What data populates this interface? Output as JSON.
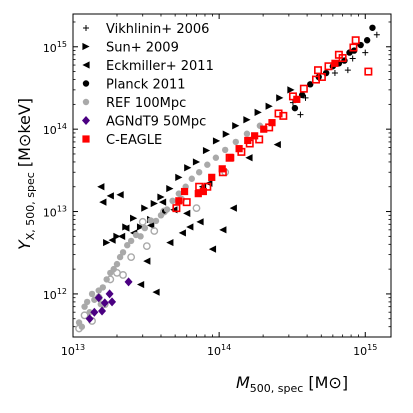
{
  "chart_data": {
    "type": "scatter",
    "title": "",
    "xlabel": "M_{500, spec} [M⊙]",
    "ylabel": "Y_{X, 500, spec} [M⊙keV]",
    "xlabel_main": "M",
    "xlabel_sub": "500, spec",
    "xlabel_unit": " [M⊙]",
    "ylabel_main": "Y",
    "ylabel_sub": "X, 500, spec",
    "ylabel_unit": " [M⊙keV]",
    "xscale": "log",
    "yscale": "log",
    "xlim": [
      10000000000000.0,
      1500000000000000.0
    ],
    "ylim": [
      300000000000.0,
      2500000000000000.0
    ],
    "xticks": [
      {
        "value": 10000000000000.0,
        "mant": "10",
        "exp": "13"
      },
      {
        "value": 100000000000000.0,
        "mant": "10",
        "exp": "14"
      },
      {
        "value": 1000000000000000.0,
        "mant": "10",
        "exp": "15"
      }
    ],
    "yticks": [
      {
        "value": 1000000000000.0,
        "mant": "10",
        "exp": "12"
      },
      {
        "value": 10000000000000.0,
        "mant": "10",
        "exp": "13"
      },
      {
        "value": 100000000000000.0,
        "mant": "10",
        "exp": "14"
      },
      {
        "value": 1000000000000000.0,
        "mant": "10",
        "exp": "15"
      }
    ],
    "legend_position": "top-left",
    "series": [
      {
        "name": "Vikhlinin+ 2006",
        "marker": "plus",
        "color": "#000000",
        "x": [
          320000000000000.0,
          360000000000000.0,
          390000000000000.0,
          620000000000000.0,
          760000000000000.0,
          820000000000000.0,
          1000000000000000.0,
          1200000000000000.0
        ],
        "y": [
          210000000000000.0,
          150000000000000.0,
          240000000000000.0,
          480000000000000.0,
          520000000000000.0,
          720000000000000.0,
          850000000000000.0,
          1400000000000000.0
        ]
      },
      {
        "name": "Sun+ 2009",
        "marker": "triangle-right",
        "color": "#000000",
        "x": [
          17000000000000.0,
          20000000000000.0,
          23000000000000.0,
          26000000000000.0,
          31000000000000.0,
          36000000000000.0,
          40000000000000.0,
          46000000000000.0,
          53000000000000.0,
          61000000000000.0,
          70000000000000.0,
          82000000000000.0,
          96000000000000.0,
          112000000000000.0,
          130000000000000.0,
          155000000000000.0,
          185000000000000.0,
          220000000000000.0,
          260000000000000.0,
          310000000000000.0,
          29000000000000.0,
          34000000000000.0,
          43000000000000.0
        ],
        "y": [
          4200000000000.0,
          5000000000000.0,
          6500000000000.0,
          8300000000000.0,
          11000000000000.0,
          12500000000000.0,
          15000000000000.0,
          19000000000000.0,
          26000000000000.0,
          34000000000000.0,
          40000000000000.0,
          55000000000000.0,
          72000000000000.0,
          87000000000000.0,
          110000000000000.0,
          130000000000000.0,
          160000000000000.0,
          190000000000000.0,
          240000000000000.0,
          300000000000000.0,
          6500000000000.0,
          8000000000000.0,
          10000000000000.0
        ]
      },
      {
        "name": "Eckmiller+ 2011",
        "marker": "triangle-left",
        "color": "#000000",
        "x": [
          15500000000000.0,
          18000000000000.0,
          21000000000000.0,
          23000000000000.0,
          29000000000000.0,
          32000000000000.0,
          37000000000000.0,
          41000000000000.0,
          49000000000000.0,
          56000000000000.0,
          63000000000000.0,
          74000000000000.0,
          90000000000000.0,
          106000000000000.0,
          125000000000000.0,
          160000000000000.0,
          250000000000000.0,
          18500000000000.0,
          26000000000000.0,
          34000000000000.0,
          46000000000000.0,
          60000000000000.0,
          77000000000000.0,
          85000000000000.0,
          16000000000000.0,
          21500000000000.0
        ],
        "y": [
          20000000000000.0,
          15500000000000.0,
          16000000000000.0,
          6300000000000.0,
          1300000000000.0,
          2500000000000.0,
          1050000000000.0,
          13000000000000.0,
          10500000000000.0,
          5500000000000.0,
          6500000000000.0,
          7500000000000.0,
          3500000000000.0,
          6000000000000.0,
          11000000000000.0,
          45000000000000.0,
          65000000000000.0,
          4500000000000.0,
          5500000000000.0,
          6800000000000.0,
          4200000000000.0,
          9500000000000.0,
          20000000000000.0,
          22000000000000.0,
          13000000000000.0,
          5000000000000.0
        ]
      },
      {
        "name": "Planck 2011",
        "marker": "circle",
        "color": "#000000",
        "x": [
          330000000000000.0,
          370000000000000.0,
          420000000000000.0,
          480000000000000.0,
          540000000000000.0,
          600000000000000.0,
          660000000000000.0,
          720000000000000.0,
          780000000000000.0,
          840000000000000.0,
          930000000000000.0,
          1030000000000000.0,
          1120000000000000.0
        ],
        "y": [
          180000000000000.0,
          260000000000000.0,
          350000000000000.0,
          430000000000000.0,
          480000000000000.0,
          580000000000000.0,
          630000000000000.0,
          680000000000000.0,
          850000000000000.0,
          900000000000000.0,
          1050000000000000.0,
          1200000000000000.0,
          1700000000000000.0
        ]
      },
      {
        "name": "REF 100Mpc",
        "marker": "circle",
        "color": "#a9a9a9",
        "x": [
          11000000000000.0,
          11500000000000.0,
          12000000000000.0,
          12500000000000.0,
          13000000000000.0,
          13500000000000.0,
          14000000000000.0,
          15000000000000.0,
          15500000000000.0,
          16000000000000.0,
          17000000000000.0,
          18000000000000.0,
          19000000000000.0,
          20000000000000.0,
          21000000000000.0,
          22000000000000.0,
          23500000000000.0,
          25000000000000.0,
          27000000000000.0,
          29000000000000.0,
          31000000000000.0,
          34000000000000.0,
          37000000000000.0,
          40000000000000.0,
          44000000000000.0,
          48000000000000.0,
          53000000000000.0,
          59000000000000.0,
          65000000000000.0,
          73000000000000.0,
          83000000000000.0,
          95000000000000.0,
          110000000000000.0,
          130000000000000.0,
          155000000000000.0,
          190000000000000.0
        ],
        "y": [
          450000000000.0,
          400000000000.0,
          700000000000.0,
          800000000000.0,
          600000000000.0,
          1000000000000.0,
          850000000000.0,
          1100000000000.0,
          750000000000.0,
          1200000000000.0,
          1500000000000.0,
          1800000000000.0,
          2000000000000.0,
          2300000000000.0,
          2800000000000.0,
          3200000000000.0,
          3900000000000.0,
          4400000000000.0,
          5200000000000.0,
          5000000000000.0,
          6300000000000.0,
          7800000000000.0,
          7700000000000.0,
          9000000000000.0,
          10600000000000.0,
          13500000000000.0,
          16500000000000.0,
          20000000000000.0,
          25000000000000.0,
          30000000000000.0,
          37000000000000.0,
          45000000000000.0,
          56000000000000.0,
          70000000000000.0,
          88000000000000.0,
          110000000000000.0
        ]
      },
      {
        "name": "REF 100Mpc",
        "marker": "circle-open",
        "color": "#a9a9a9",
        "x": [
          11000000000000.0,
          12000000000000.0,
          13500000000000.0,
          15000000000000.0,
          16500000000000.0,
          18000000000000.0,
          20000000000000.0,
          22000000000000.0,
          25000000000000.0,
          30000000000000.0,
          32000000000000.0,
          36000000000000.0,
          42000000000000.0,
          55000000000000.0,
          70000000000000.0,
          110000000000000.0
        ],
        "y": [
          380000000000.0,
          550000000000.0,
          470000000000.0,
          900000000000.0,
          750000000000.0,
          1500000000000.0,
          1800000000000.0,
          1700000000000.0,
          2800000000000.0,
          7500000000000.0,
          3800000000000.0,
          5800000000000.0,
          10000000000000.0,
          14000000000000.0,
          11000000000000.0,
          30000000000000.0
        ]
      },
      {
        "name": "AGNdT9 50Mpc",
        "marker": "diamond",
        "color": "#4b0082",
        "x": [
          13000000000000.0,
          14000000000000.0,
          15000000000000.0,
          15800000000000.0,
          16500000000000.0,
          17800000000000.0,
          18500000000000.0,
          24000000000000.0
        ],
        "y": [
          500000000000.0,
          600000000000.0,
          900000000000.0,
          620000000000.0,
          780000000000.0,
          1000000000000.0,
          800000000000.0,
          1400000000000.0
        ]
      },
      {
        "name": "C-EAGLE",
        "marker": "square",
        "color": "#ff0000",
        "x": [
          53000000000000.0,
          58000000000000.0,
          72000000000000.0,
          78000000000000.0,
          89000000000000.0,
          105000000000000.0,
          120000000000000.0,
          137000000000000.0,
          157000000000000.0,
          175000000000000.0,
          202000000000000.0,
          230000000000000.0,
          340000000000000.0,
          620000000000000.0
        ],
        "y": [
          13500000000000.0,
          17500000000000.0,
          16500000000000.0,
          17500000000000.0,
          26000000000000.0,
          33000000000000.0,
          45000000000000.0,
          58000000000000.0,
          73000000000000.0,
          83000000000000.0,
          100000000000000.0,
          120000000000000.0,
          230000000000000.0,
          630000000000000.0
        ]
      },
      {
        "name": "C-EAGLE",
        "marker": "square-open",
        "color": "#ff0000",
        "x": [
          51000000000000.0,
          60000000000000.0,
          73000000000000.0,
          83000000000000.0,
          106000000000000.0,
          118000000000000.0,
          142000000000000.0,
          162000000000000.0,
          188000000000000.0,
          220000000000000.0,
          255000000000000.0,
          275000000000000.0,
          320000000000000.0,
          380000000000000.0,
          460000000000000.0,
          475000000000000.0,
          505000000000000.0,
          560000000000000.0,
          660000000000000.0,
          700000000000000.0,
          830000000000000.0,
          860000000000000.0,
          1050000000000000.0
        ],
        "y": [
          11000000000000.0,
          13000000000000.0,
          20000000000000.0,
          20000000000000.0,
          30000000000000.0,
          45000000000000.0,
          53000000000000.0,
          67000000000000.0,
          75000000000000.0,
          105000000000000.0,
          155000000000000.0,
          145000000000000.0,
          250000000000000.0,
          310000000000000.0,
          400000000000000.0,
          520000000000000.0,
          430000000000000.0,
          580000000000000.0,
          800000000000000.0,
          730000000000000.0,
          980000000000000.0,
          1200000000000000.0,
          500000000000000.0
        ]
      }
    ],
    "legend": [
      {
        "label": "Vikhlinin+ 2006",
        "marker": "plus",
        "color": "#000000"
      },
      {
        "label": "Sun+ 2009",
        "marker": "triangle-right",
        "color": "#000000"
      },
      {
        "label": "Eckmiller+ 2011",
        "marker": "triangle-left",
        "color": "#000000"
      },
      {
        "label": "Planck 2011",
        "marker": "circle",
        "color": "#000000"
      },
      {
        "label": "REF 100Mpc",
        "marker": "circle",
        "color": "#a9a9a9"
      },
      {
        "label": "AGNdT9 50Mpc",
        "marker": "diamond",
        "color": "#4b0082"
      },
      {
        "label": "C-EAGLE",
        "marker": "square",
        "color": "#ff0000"
      }
    ]
  }
}
